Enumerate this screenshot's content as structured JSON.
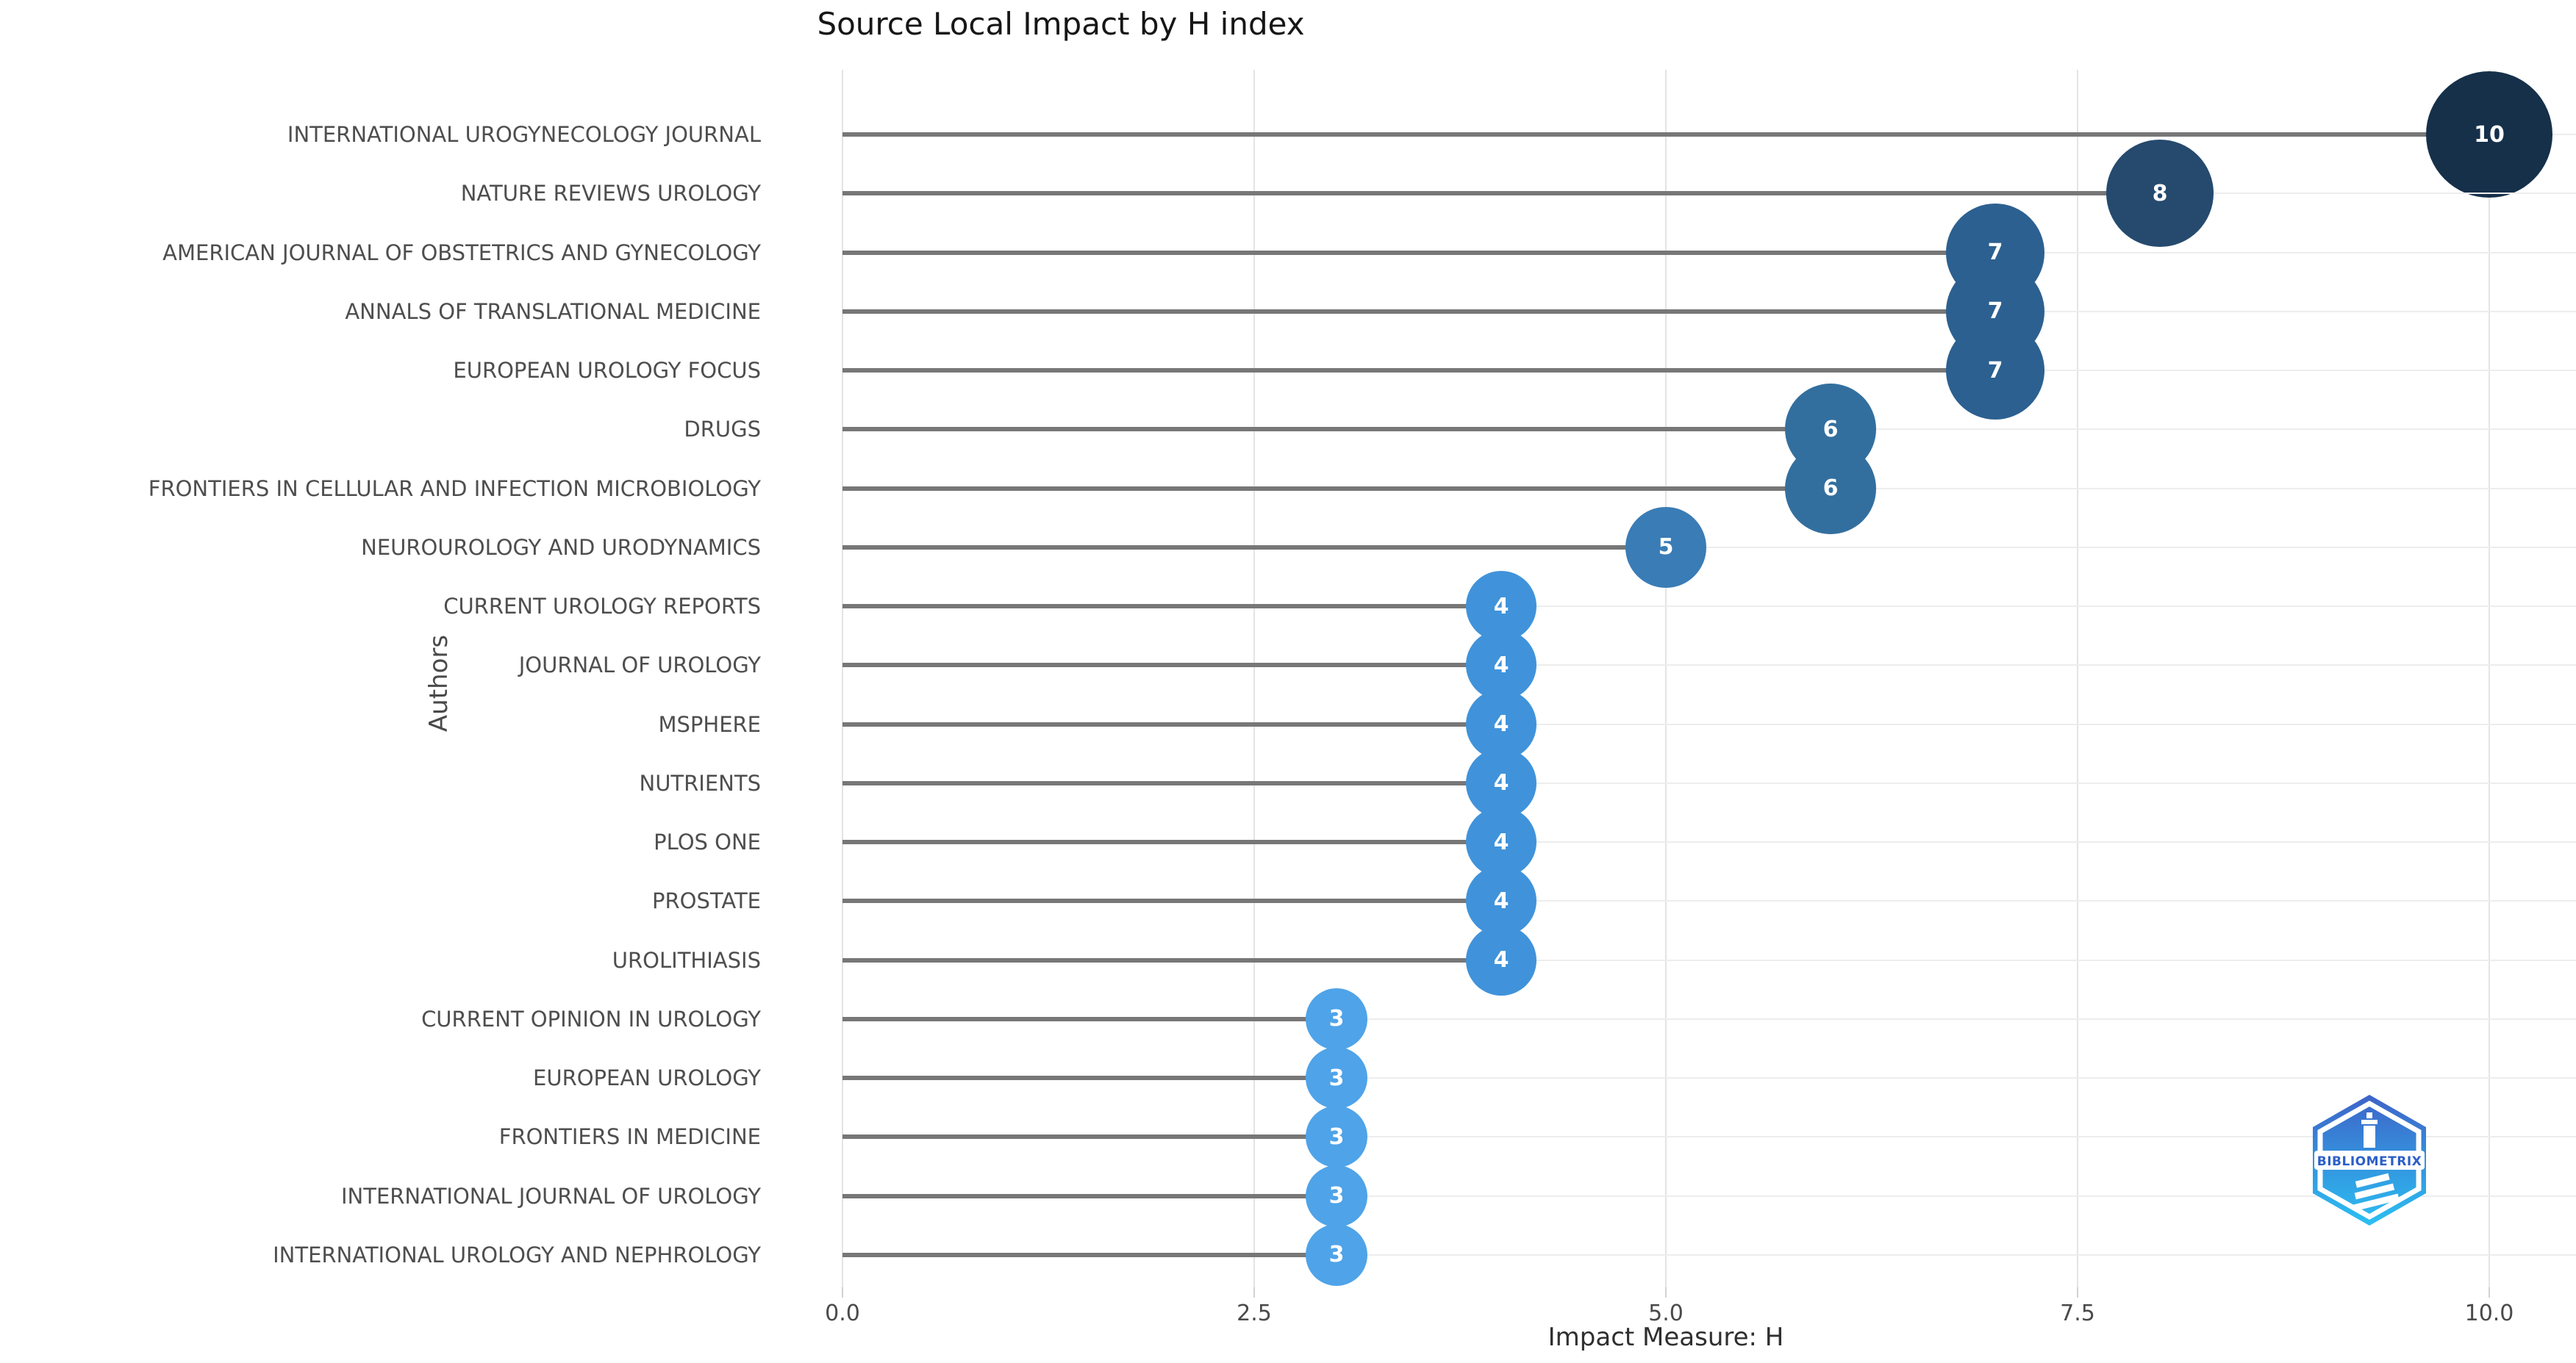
{
  "title": "Source Local Impact by H index",
  "x_axis": {
    "label": "Impact Measure: H"
  },
  "y_axis": {
    "label": "Authors"
  },
  "logo": {
    "text": "BIBLIOMETRIX"
  },
  "chart_data": {
    "type": "bar",
    "variant": "horizontal-lollipop",
    "title": "Source Local Impact by H index",
    "xlabel": "Impact Measure: H",
    "ylabel": "Authors",
    "xlim": [
      0,
      10
    ],
    "x_ticks": [
      0,
      2.5,
      5,
      7.5,
      10
    ],
    "x_tick_labels": [
      "0.0",
      "2.5",
      "5.0",
      "7.5",
      "10.0"
    ],
    "grid": true,
    "legend": false,
    "categories": [
      "INTERNATIONAL UROGYNECOLOGY JOURNAL",
      "NATURE REVIEWS UROLOGY",
      "AMERICAN JOURNAL OF OBSTETRICS AND GYNECOLOGY",
      "ANNALS OF TRANSLATIONAL MEDICINE",
      "EUROPEAN UROLOGY FOCUS",
      "DRUGS",
      "FRONTIERS IN CELLULAR AND INFECTION MICROBIOLOGY",
      "NEUROUROLOGY AND URODYNAMICS",
      "CURRENT UROLOGY REPORTS",
      "JOURNAL OF UROLOGY",
      "MSPHERE",
      "NUTRIENTS",
      "PLOS ONE",
      "PROSTATE",
      "UROLITHIASIS",
      "CURRENT OPINION IN UROLOGY",
      "EUROPEAN UROLOGY",
      "FRONTIERS IN MEDICINE",
      "INTERNATIONAL JOURNAL OF UROLOGY",
      "INTERNATIONAL UROLOGY AND NEPHROLOGY"
    ],
    "values": [
      10,
      8,
      7,
      7,
      7,
      6,
      6,
      5,
      4,
      4,
      4,
      4,
      4,
      4,
      4,
      3,
      3,
      3,
      3,
      3
    ],
    "point_colors_by_value": {
      "3": "#4FA3E8",
      "4": "#4093DA",
      "5": "#3A7CB5",
      "6": "#336F9E",
      "7": "#2C6090",
      "8": "#254A6E",
      "10": "#16304A"
    },
    "point_radius_by_value": {
      "3": 42,
      "4": 48,
      "5": 55,
      "6": 62,
      "7": 67,
      "8": 73,
      "10": 86
    },
    "stem_color": "#777777"
  }
}
